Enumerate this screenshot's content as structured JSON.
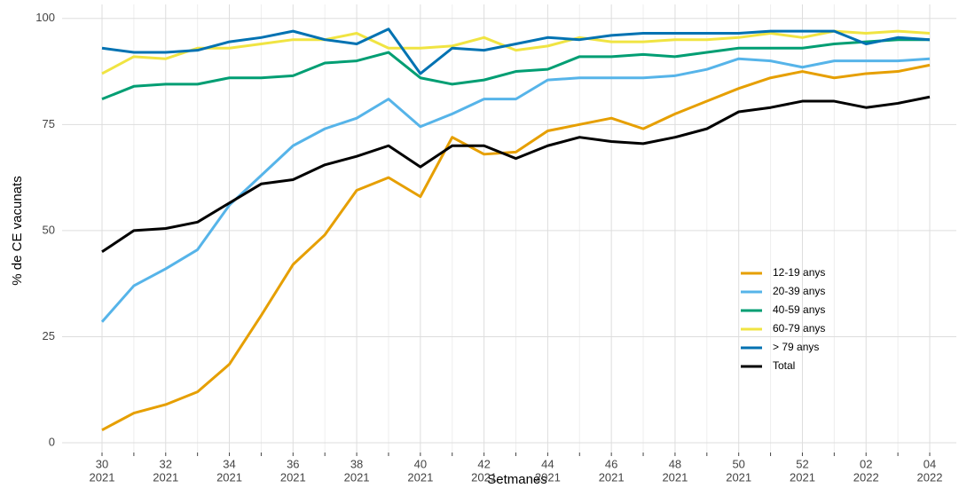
{
  "chart_data": {
    "type": "line",
    "x_title": "Setmanes",
    "y_title": "% de CE vacunats",
    "categories": [
      "30",
      null,
      "32",
      null,
      "34",
      null,
      "36",
      null,
      "38",
      null,
      "40",
      null,
      "42",
      null,
      "44",
      null,
      "46",
      null,
      "48",
      null,
      "50",
      null,
      "52",
      null,
      "02",
      null,
      "04"
    ],
    "category_years": [
      "2021",
      null,
      "2021",
      null,
      "2021",
      null,
      "2021",
      null,
      "2021",
      null,
      "2021",
      null,
      "2021",
      null,
      "2021",
      null,
      "2021",
      null,
      "2021",
      null,
      "2021",
      null,
      "2021",
      null,
      "2022",
      null,
      "2022"
    ],
    "ylim": [
      -2.3,
      103.3
    ],
    "yticks": [
      0,
      25,
      50,
      75,
      100
    ],
    "grid": true,
    "legend_position": "bottom-right",
    "series": [
      {
        "name": "12-19 anys",
        "color": "#E69F00",
        "values": [
          3,
          7,
          9,
          12,
          18.5,
          30,
          42,
          49,
          59.5,
          62.5,
          58,
          72,
          68,
          68.5,
          73.5,
          75,
          76.5,
          74,
          77.5,
          80.5,
          83.5,
          86,
          87.5,
          86,
          87,
          87.5,
          89
        ]
      },
      {
        "name": "20-39 anys",
        "color": "#56B4E9",
        "values": [
          28.5,
          37,
          41,
          45.5,
          56,
          63,
          70,
          74,
          76.5,
          81,
          74.5,
          77.5,
          81,
          81,
          85.5,
          86,
          86,
          86,
          86.5,
          88,
          90.5,
          90,
          88.5,
          90,
          90,
          90,
          90.5
        ]
      },
      {
        "name": "40-59 anys",
        "color": "#009E73",
        "values": [
          81,
          84,
          84.5,
          84.5,
          86,
          86,
          86.5,
          89.5,
          90,
          92,
          86,
          84.5,
          85.5,
          87.5,
          88,
          91,
          91,
          91.5,
          91,
          92,
          93,
          93,
          93,
          94,
          94.5,
          95,
          95
        ]
      },
      {
        "name": "60-79 anys",
        "color": "#F0E442",
        "values": [
          87,
          91,
          90.5,
          93,
          93,
          94,
          95,
          95,
          96.5,
          93,
          93,
          93.5,
          95.5,
          92.5,
          93.5,
          95.5,
          94.5,
          94.5,
          95,
          95,
          95.5,
          96.5,
          95.5,
          97,
          96.5,
          97,
          96.5
        ]
      },
      {
        "name": "> 79 anys",
        "color": "#0072B2",
        "values": [
          93,
          92,
          92,
          92.5,
          94.5,
          95.5,
          97,
          95,
          94,
          97.5,
          87,
          93,
          92.5,
          94,
          95.5,
          95,
          96,
          96.5,
          96.5,
          96.5,
          96.5,
          97,
          97,
          97,
          94,
          95.5,
          95
        ]
      },
      {
        "name": "Total",
        "color": "#000000",
        "values": [
          45,
          50,
          50.5,
          52,
          56.5,
          61,
          62,
          65.5,
          67.5,
          70,
          65,
          70,
          70,
          67,
          70,
          72,
          71,
          70.5,
          72,
          74,
          78,
          79,
          80.5,
          80.5,
          79,
          80,
          81.5
        ]
      }
    ]
  }
}
